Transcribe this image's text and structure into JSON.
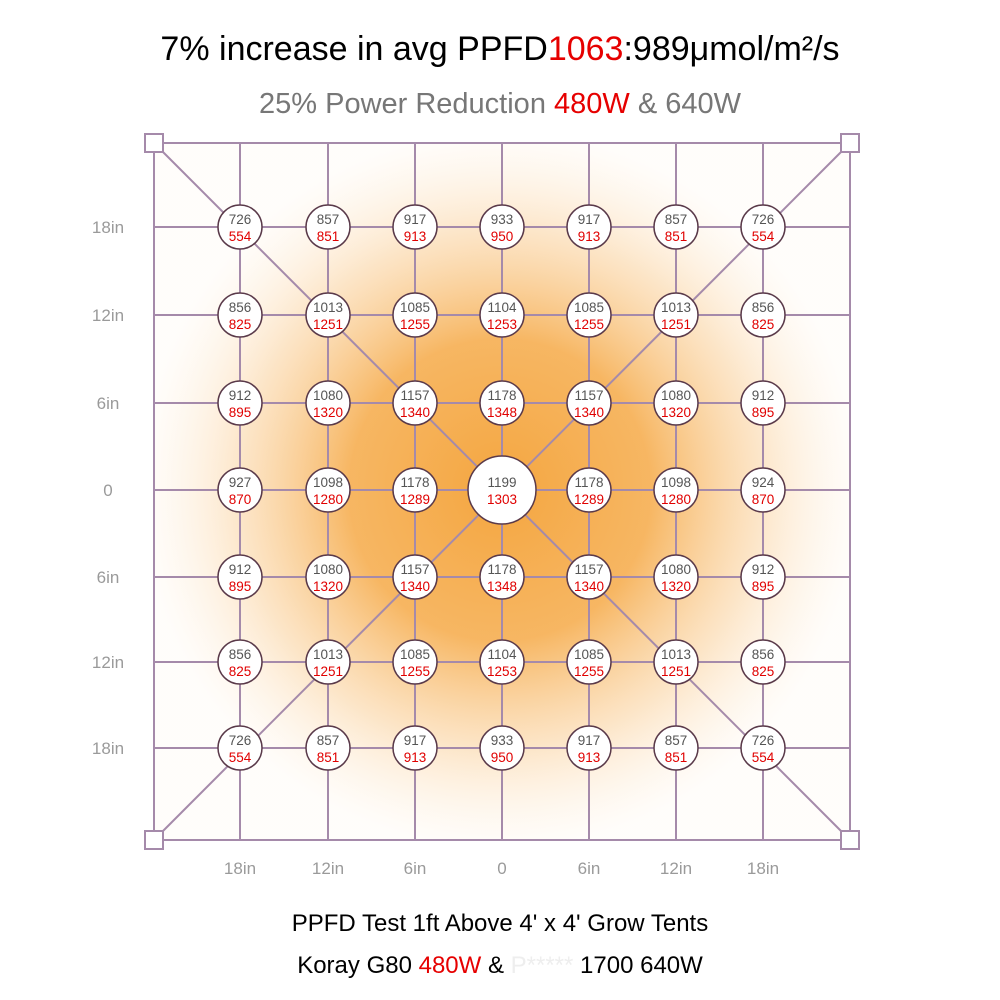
{
  "header": {
    "title_part1": "7% increase in avg PPFD",
    "title_value_a": "1063",
    "title_part2": ":989μmol/m²/s",
    "subtitle_part1": "25% Power Reduction ",
    "subtitle_value_a": "480W",
    "subtitle_part2": " & 640W"
  },
  "footer": {
    "line1": "PPFD Test 1ft Above 4' x 4' Grow Tents",
    "line2_part1": "Koray G80 ",
    "line2_value_a": "480W",
    "line2_part2": " & ",
    "line2_hidden": "P*****",
    "line2_part3": " 1700 640W"
  },
  "colors": {
    "grid": "#a58aaa",
    "glow": "#f5a843",
    "red": "#e60000",
    "gray_text": "#555555"
  },
  "chart_data": {
    "type": "heatmap",
    "title": "7% increase in avg PPFD1063:989μmol/m²/s",
    "subtitle": "25% Power Reduction 480W & 640W",
    "x_tick_labels": [
      "18in",
      "12in",
      "6in",
      "0",
      "6in",
      "12in",
      "18in"
    ],
    "y_tick_labels": [
      "18in",
      "12in",
      "6in",
      "0",
      "6in",
      "12in",
      "18in"
    ],
    "series": [
      {
        "name": "640W",
        "color": "#555555",
        "values": [
          [
            726,
            857,
            917,
            933,
            917,
            857,
            726
          ],
          [
            856,
            1013,
            1085,
            1104,
            1085,
            1013,
            856
          ],
          [
            912,
            1080,
            1157,
            1178,
            1157,
            1080,
            912
          ],
          [
            927,
            1098,
            1178,
            1199,
            1178,
            1098,
            924
          ],
          [
            912,
            1080,
            1157,
            1178,
            1157,
            1080,
            912
          ],
          [
            856,
            1013,
            1085,
            1104,
            1085,
            1013,
            856
          ],
          [
            726,
            857,
            917,
            933,
            917,
            857,
            726
          ]
        ]
      },
      {
        "name": "480W",
        "color": "#e60000",
        "values": [
          [
            554,
            851,
            913,
            950,
            913,
            851,
            554
          ],
          [
            825,
            1251,
            1255,
            1253,
            1255,
            1251,
            825
          ],
          [
            895,
            1320,
            1340,
            1348,
            1340,
            1320,
            895
          ],
          [
            870,
            1280,
            1289,
            1303,
            1289,
            1280,
            870
          ],
          [
            895,
            1320,
            1340,
            1348,
            1340,
            1320,
            895
          ],
          [
            825,
            1251,
            1255,
            1253,
            1255,
            1251,
            825
          ],
          [
            554,
            851,
            913,
            950,
            913,
            851,
            554
          ]
        ]
      }
    ]
  }
}
